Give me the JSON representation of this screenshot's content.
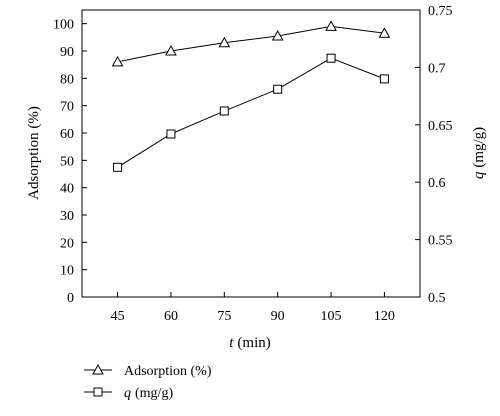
{
  "chart_data": {
    "type": "line",
    "x": [
      45,
      60,
      75,
      90,
      105,
      120
    ],
    "xlabel": {
      "var": "t",
      "unit": "(min)"
    },
    "xlim": [
      35,
      130
    ],
    "x_ticks": [
      "45",
      "60",
      "75",
      "90",
      "105",
      "120"
    ],
    "y_left": {
      "label": "Adsorption (%)",
      "lim": [
        0,
        105
      ],
      "ticks": [
        "0",
        "10",
        "20",
        "30",
        "40",
        "50",
        "60",
        "70",
        "80",
        "90",
        "100"
      ]
    },
    "y_right": {
      "label_var": "q",
      "label_unit": "(mg/g)",
      "lim": [
        0.5,
        0.75
      ],
      "ticks": [
        "0.5",
        "0.55",
        "0.6",
        "0.65",
        "0.7",
        "0.75"
      ]
    },
    "series": [
      {
        "name": "Adsorption (%)",
        "axis": "left",
        "marker": "triangle",
        "values": [
          86,
          90,
          93,
          95.5,
          99,
          96.5
        ]
      },
      {
        "name_var": "q",
        "name_unit": "(mg/g)",
        "axis": "right",
        "marker": "square",
        "values": [
          0.613,
          0.642,
          0.662,
          0.681,
          0.708,
          0.69
        ]
      }
    ],
    "legend_position": "bottom-left",
    "grid": false
  }
}
